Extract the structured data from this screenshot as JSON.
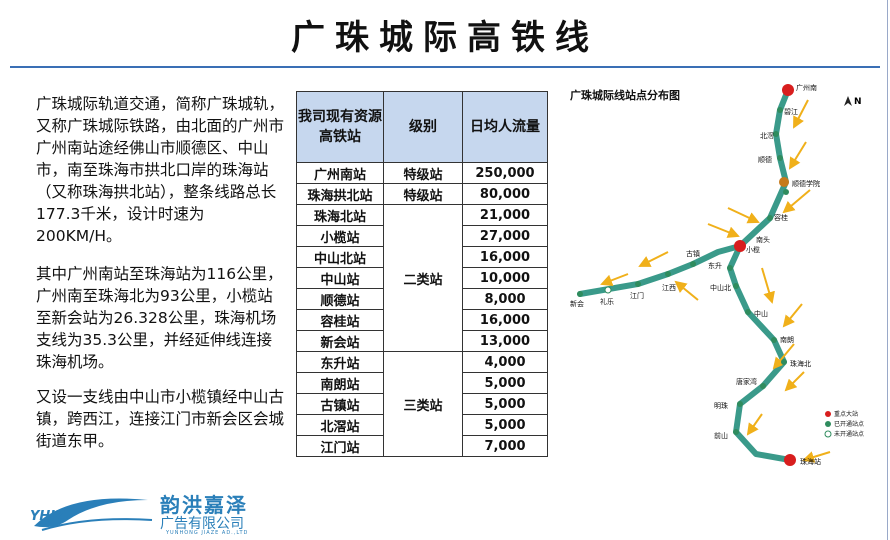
{
  "title": "广珠城际高铁线",
  "paragraphs": [
    "广珠城际轨道交通，简称广珠城轨，又称广珠城际铁路，由北面的广州市广州南站途经佛山市顺德区、中山市，南至珠海市拱北口岸的珠海站（又称珠海拱北站），整条线路总长177.3千米，设计时速为200KM/H。",
    "其中广州南站至珠海站为116公里，广州南至珠海北为93公里，小榄站至新会站为26.328公里，珠海机场支线为35.3公里，并经延伸线连接珠海机场。",
    "又设一支线由中山市小榄镇经中山古镇，跨西江，连接江门市新会区会城街道东甲。"
  ],
  "table": {
    "headers": [
      "我司现有资源高铁站",
      "级别",
      "日均人流量"
    ],
    "rows": [
      {
        "station": "广州南站",
        "flow": "250,000"
      },
      {
        "station": "珠海拱北站",
        "flow": "80,000"
      },
      {
        "station": "珠海北站",
        "flow": "21,000"
      },
      {
        "station": "小榄站",
        "flow": "27,000"
      },
      {
        "station": "中山北站",
        "flow": "16,000"
      },
      {
        "station": "中山站",
        "flow": "10,000"
      },
      {
        "station": "顺德站",
        "flow": "8,000"
      },
      {
        "station": "容桂站",
        "flow": "16,000"
      },
      {
        "station": "新会站",
        "flow": "13,000"
      },
      {
        "station": "东升站",
        "flow": "4,000"
      },
      {
        "station": "南朗站",
        "flow": "5,000"
      },
      {
        "station": "古镇站",
        "flow": "5,000"
      },
      {
        "station": "北滘站",
        "flow": "5,000"
      },
      {
        "station": "江门站",
        "flow": "7,000"
      }
    ],
    "levels": {
      "special": "特级站",
      "class2": "二类站",
      "class3": "三类站"
    }
  },
  "map": {
    "title": "广珠城际线站点分布图",
    "north": "N",
    "stations": {
      "guangzhounan": "广州南",
      "bijiang": "碧江",
      "beijiao": "北滘",
      "shunde": "顺德",
      "shundexueyuan": "顺德学院",
      "ronggui": "容桂",
      "nantou": "南头",
      "xiaolan": "小榄",
      "dongsheng": "东升",
      "zhongshanbei": "中山北",
      "zhongshan": "中山",
      "nanlang": "南朗",
      "zhuhaibei": "珠海北",
      "tangjiawan": "唐家湾",
      "mingzhu": "明珠",
      "qianshan": "前山",
      "zhuhai": "珠海站",
      "guzhen": "古镇",
      "jiangxi": "江西",
      "jiangmen": "江门",
      "zhale": "礼乐",
      "xinhui": "新会"
    },
    "legend": [
      "重点大站",
      "已开通站点",
      "未开通站点"
    ],
    "colors": {
      "line": "#3a9a8a",
      "arrow": "#f0b01a",
      "major": "#d81e1e",
      "minor": "#2f8c5e"
    }
  },
  "logo": {
    "name": "韵洪嘉泽",
    "sub": "广告有限公司",
    "en": "YUNHONG JIAZE AD.,LTD",
    "mark": "YHJZ"
  }
}
